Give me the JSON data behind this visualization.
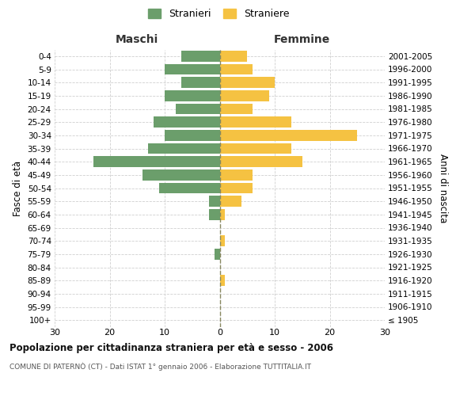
{
  "age_groups": [
    "100+",
    "95-99",
    "90-94",
    "85-89",
    "80-84",
    "75-79",
    "70-74",
    "65-69",
    "60-64",
    "55-59",
    "50-54",
    "45-49",
    "40-44",
    "35-39",
    "30-34",
    "25-29",
    "20-24",
    "15-19",
    "10-14",
    "5-9",
    "0-4"
  ],
  "birth_years": [
    "≤ 1905",
    "1906-1910",
    "1911-1915",
    "1916-1920",
    "1921-1925",
    "1926-1930",
    "1931-1935",
    "1936-1940",
    "1941-1945",
    "1946-1950",
    "1951-1955",
    "1956-1960",
    "1961-1965",
    "1966-1970",
    "1971-1975",
    "1976-1980",
    "1981-1985",
    "1986-1990",
    "1991-1995",
    "1996-2000",
    "2001-2005"
  ],
  "males": [
    0,
    0,
    0,
    0,
    0,
    1,
    0,
    0,
    2,
    2,
    11,
    14,
    23,
    13,
    10,
    12,
    8,
    10,
    7,
    10,
    7
  ],
  "females": [
    0,
    0,
    0,
    1,
    0,
    0,
    1,
    0,
    1,
    4,
    6,
    6,
    15,
    13,
    25,
    13,
    6,
    9,
    10,
    6,
    5
  ],
  "male_color": "#6b9e6b",
  "female_color": "#f5c242",
  "title_main": "Popolazione per cittadinanza straniera per età e sesso - 2006",
  "title_sub": "COMUNE DI PATERNÒ (CT) - Dati ISTAT 1° gennaio 2006 - Elaborazione TUTTITALIA.IT",
  "label_maschi": "Maschi",
  "label_femmine": "Femmine",
  "ylabel_left": "Fasce di età",
  "ylabel_right": "Anni di nascita",
  "legend_male": "Stranieri",
  "legend_female": "Straniere",
  "xlim": 30,
  "bg_color": "#ffffff",
  "grid_color": "#d0d0d0",
  "bar_height": 0.82
}
